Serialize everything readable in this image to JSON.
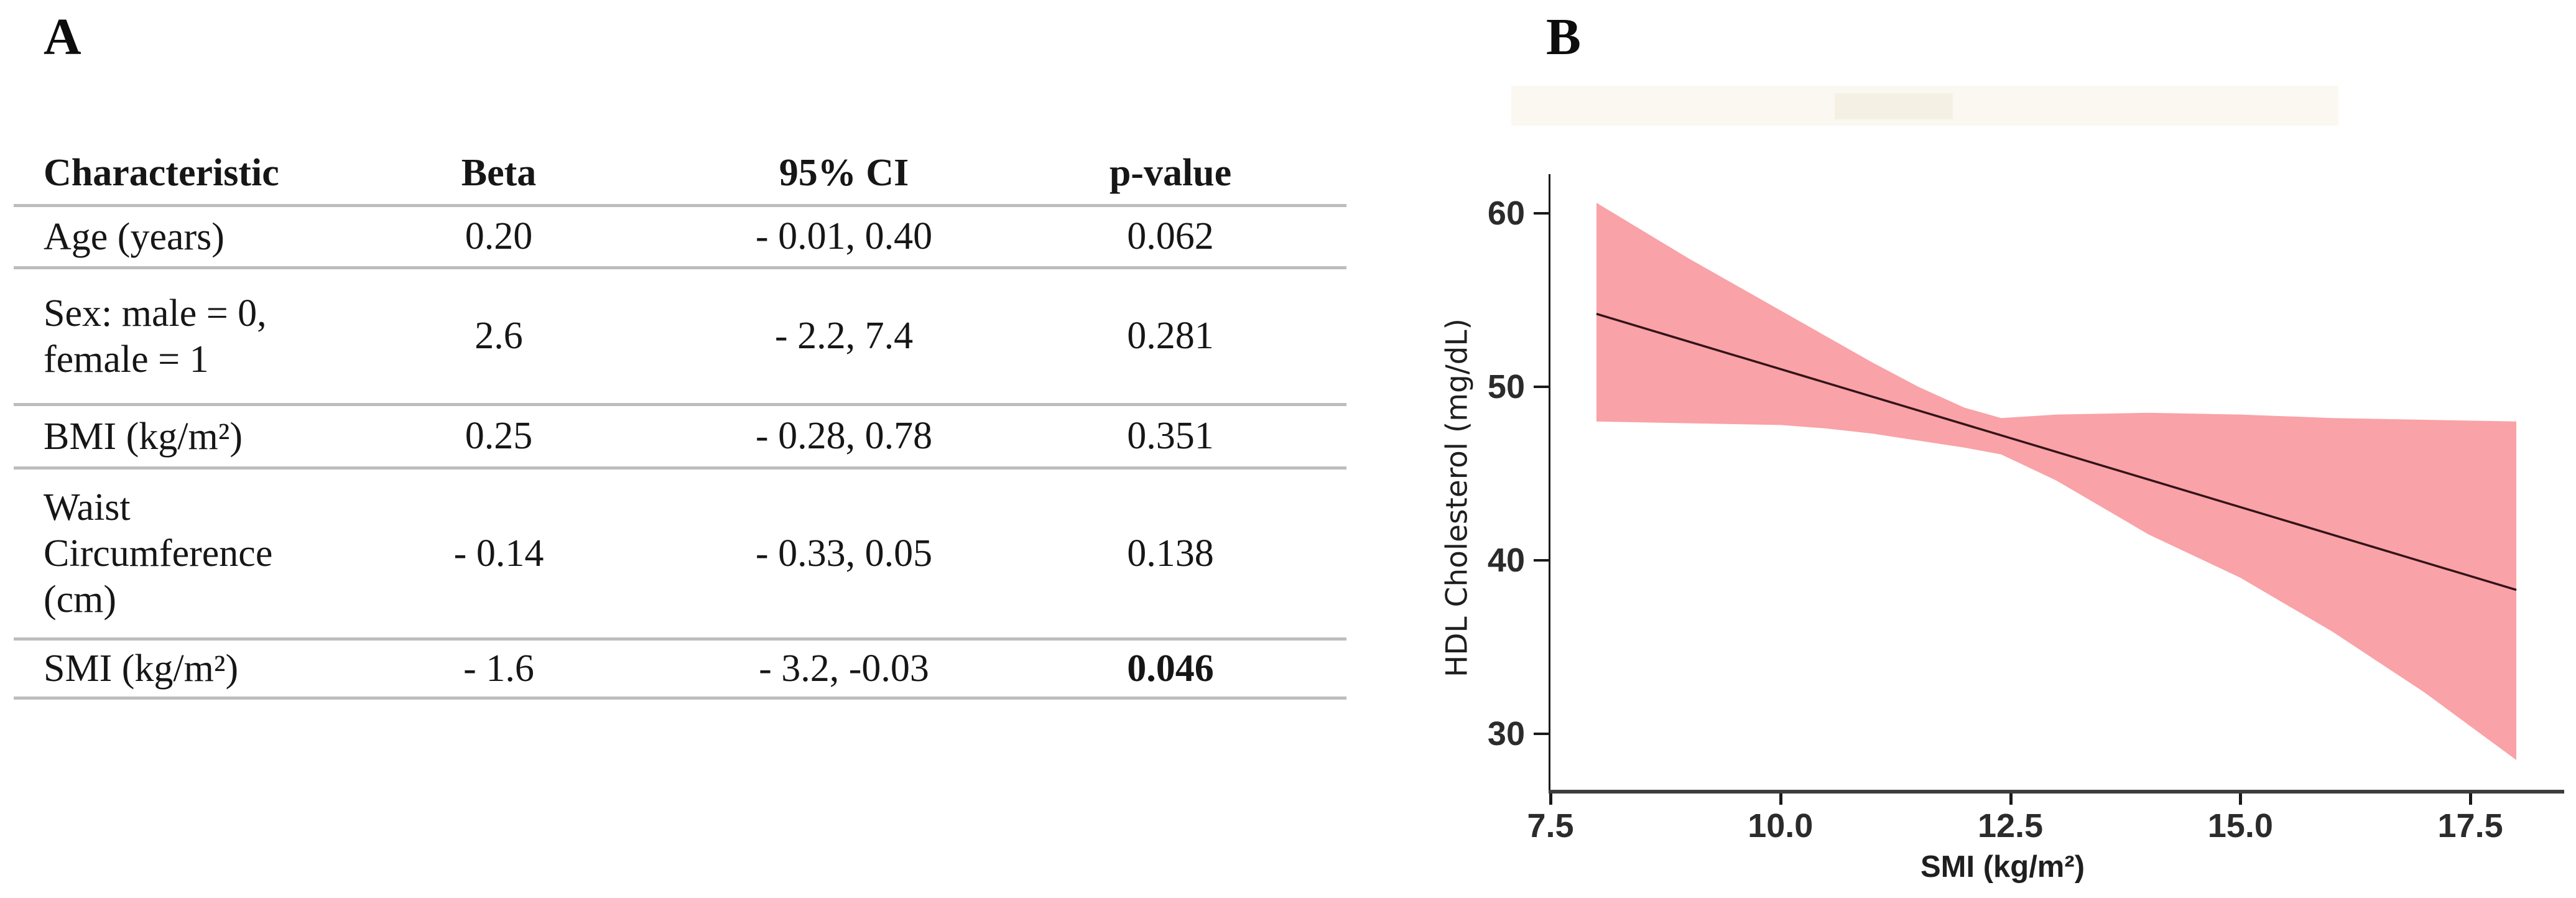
{
  "panel_a": {
    "label": "A",
    "table": {
      "headers": [
        "Characteristic",
        "Beta",
        "95% CI",
        "p-value"
      ],
      "rows": [
        {
          "characteristic": [
            "Age (years)"
          ],
          "beta": "0.20",
          "ci": "- 0.01, 0.40",
          "p": "0.062",
          "p_bold": false
        },
        {
          "characteristic": [
            "Sex: male = 0,",
            "female = 1"
          ],
          "beta": "2.6",
          "ci": "- 2.2, 7.4",
          "p": "0.281",
          "p_bold": false
        },
        {
          "characteristic": [
            "BMI (kg/m²)"
          ],
          "beta": "0.25",
          "ci": "- 0.28, 0.78",
          "p": "0.351",
          "p_bold": false
        },
        {
          "characteristic": [
            "Waist",
            "Circumference",
            "(cm)"
          ],
          "beta": "- 0.14",
          "ci": "- 0.33, 0.05",
          "p": "0.138",
          "p_bold": false
        },
        {
          "characteristic": [
            "SMI (kg/m²)"
          ],
          "beta": "- 1.6",
          "ci": "- 3.2, -0.03",
          "p": "0.046",
          "p_bold": true
        }
      ]
    }
  },
  "panel_b": {
    "label": "B"
  },
  "chart_data": {
    "type": "line",
    "title": "",
    "xlabel": "SMI (kg/m²)",
    "ylabel": "HDL Cholesterol (mg/dL)",
    "x_range": [
      7.5,
      18.5
    ],
    "y_range": [
      26.75,
      62.25
    ],
    "grid": false,
    "legend": "none",
    "x_ticks": [
      {
        "v": 7.5,
        "label": "7.5"
      },
      {
        "v": 10.0,
        "label": "10.0"
      },
      {
        "v": 12.5,
        "label": "12.5"
      },
      {
        "v": 15.0,
        "label": "15.0"
      },
      {
        "v": 17.5,
        "label": "17.5"
      }
    ],
    "y_ticks": [
      {
        "v": 30,
        "label": "30"
      },
      {
        "v": 40,
        "label": "40"
      },
      {
        "v": 50,
        "label": "50"
      },
      {
        "v": 60,
        "label": "60"
      }
    ],
    "regression_line": {
      "x": [
        8.0,
        18.0
      ],
      "y": [
        54.2,
        38.3
      ]
    },
    "ci_band": [
      {
        "x": 8.0,
        "lo": 48.0,
        "hi": 60.6
      },
      {
        "x": 9.0,
        "lo": 47.9,
        "hi": 57.4
      },
      {
        "x": 10.0,
        "lo": 47.8,
        "hi": 54.4
      },
      {
        "x": 10.5,
        "lo": 47.6,
        "hi": 52.9
      },
      {
        "x": 11.0,
        "lo": 47.3,
        "hi": 51.4
      },
      {
        "x": 11.5,
        "lo": 46.9,
        "hi": 50.0
      },
      {
        "x": 12.0,
        "lo": 46.5,
        "hi": 48.8
      },
      {
        "x": 12.4,
        "lo": 46.1,
        "hi": 48.2
      },
      {
        "x": 13.0,
        "lo": 44.6,
        "hi": 48.4
      },
      {
        "x": 14.0,
        "lo": 41.5,
        "hi": 48.5
      },
      {
        "x": 15.0,
        "lo": 39.0,
        "hi": 48.4
      },
      {
        "x": 16.0,
        "lo": 35.9,
        "hi": 48.2
      },
      {
        "x": 17.0,
        "lo": 32.4,
        "hi": 48.1
      },
      {
        "x": 18.0,
        "lo": 28.5,
        "hi": 48.0
      }
    ],
    "band_color": "#f9a2a7",
    "line_color": "#331418",
    "axis_color": "#1a1a1a"
  },
  "colors": {
    "table_rule": "#bdbdbd",
    "background": "#ffffff",
    "tick_label": "#2b2b2b"
  }
}
